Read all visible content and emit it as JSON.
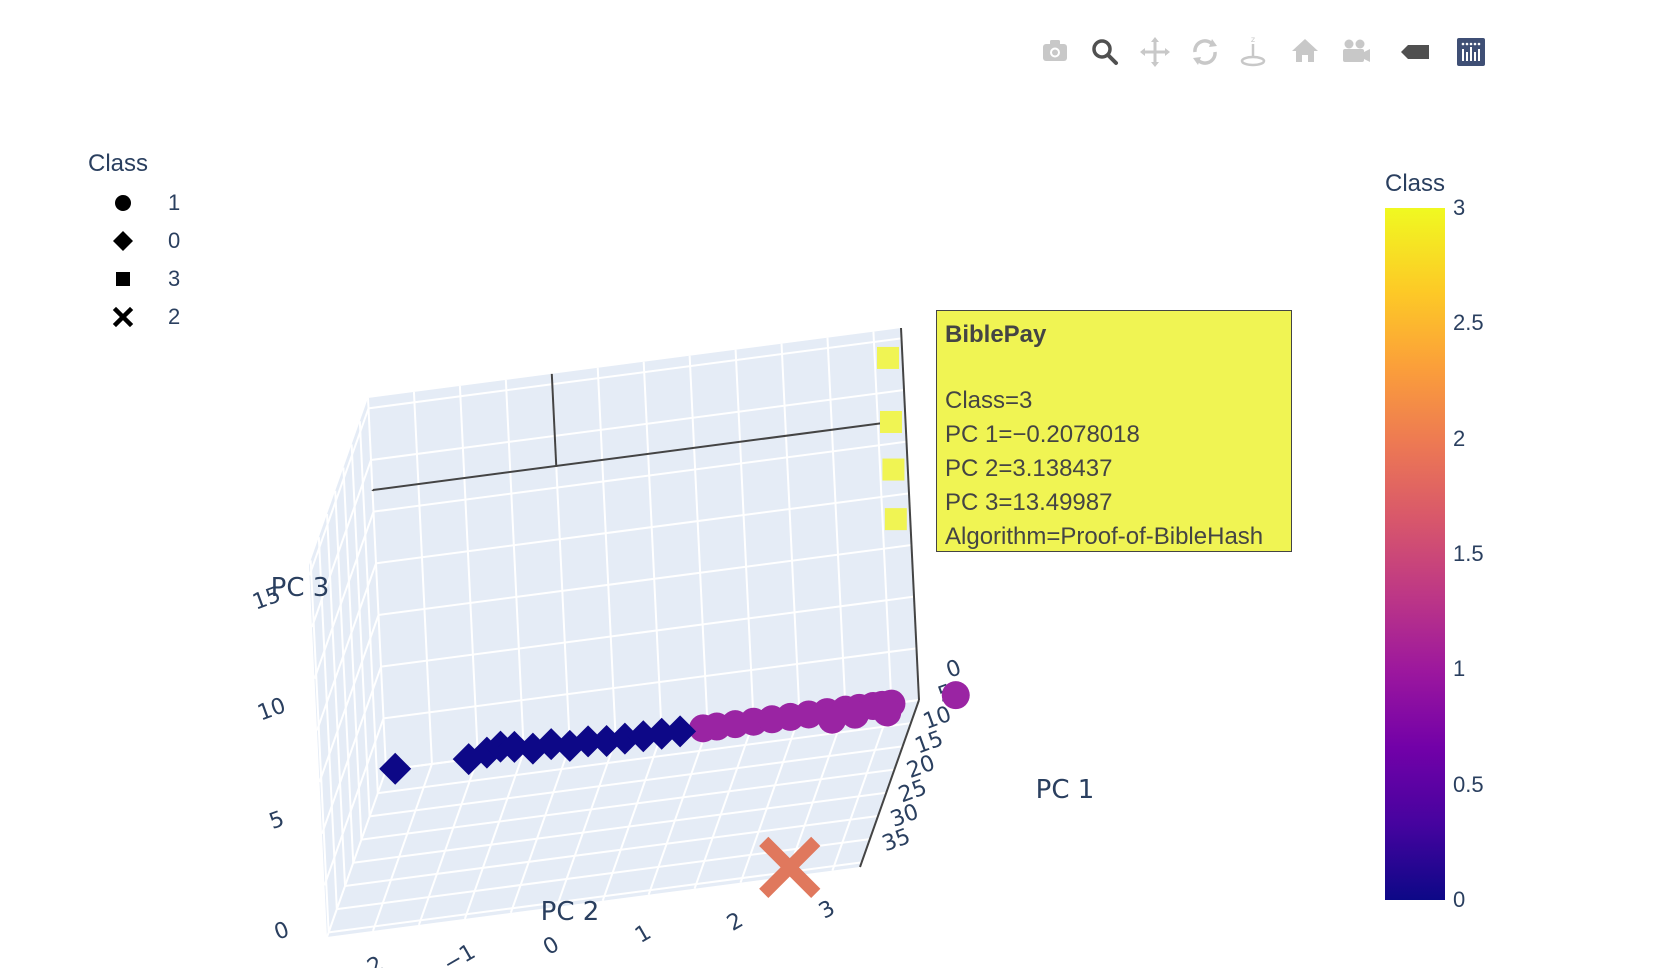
{
  "modebar": {
    "buttons": [
      {
        "name": "download-plot-button",
        "icon": "camera-icon"
      },
      {
        "name": "zoom-button",
        "icon": "zoom-icon"
      },
      {
        "name": "pan-button",
        "icon": "pan-icon"
      },
      {
        "name": "orbit-rotation-button",
        "icon": "orbit-icon"
      },
      {
        "name": "turntable-rotation-button",
        "icon": "turntable-icon"
      },
      {
        "name": "reset-camera-button",
        "icon": "home-icon"
      },
      {
        "name": "reset-last-view-button",
        "icon": "camera-video-icon"
      },
      {
        "name": "toggle-hover-button",
        "icon": "hover-tag-icon"
      },
      {
        "name": "plotly-logo-button",
        "icon": "plotly-logo-icon"
      }
    ]
  },
  "legend": {
    "title": "Class",
    "items": [
      {
        "label": "1",
        "symbol": "circle"
      },
      {
        "label": "0",
        "symbol": "diamond"
      },
      {
        "label": "3",
        "symbol": "square"
      },
      {
        "label": "2",
        "symbol": "x"
      }
    ]
  },
  "colorbar": {
    "title": "Class",
    "ticks": [
      "3",
      "2.5",
      "2",
      "1.5",
      "1",
      "0.5",
      "0"
    ],
    "colors": [
      "#0d0887",
      "#46039f",
      "#7201a8",
      "#9c179e",
      "#bd3786",
      "#d8576b",
      "#ed7953",
      "#fb9f3a",
      "#fdca26",
      "#f0f921"
    ]
  },
  "tooltip": {
    "title": "BiblePay",
    "lines": [
      "Class=3",
      "PC 1=−0.2078018",
      "PC 2=3.138437",
      "PC 3=13.49987",
      "Algorithm=Proof-of-BibleHash"
    ]
  },
  "chart_data": {
    "type": "scatter",
    "title": "",
    "axes": {
      "x": {
        "label": "PC 1",
        "range": [
          0,
          36
        ],
        "ticks": [
          "0",
          "5",
          "10",
          "15",
          "20",
          "25",
          "30",
          "35"
        ]
      },
      "y": {
        "label": "PC 2",
        "range": [
          -2.5,
          3.3
        ],
        "ticks": [
          "−2",
          "−1",
          "0",
          "1",
          "2",
          "3"
        ]
      },
      "z": {
        "label": "PC 3",
        "range": [
          0,
          18
        ],
        "ticks": [
          "0",
          "5",
          "10",
          "15"
        ]
      }
    },
    "grid": true,
    "colorscale": "plasma",
    "series": [
      {
        "name": "1",
        "symbol": "circle",
        "color": "#9a24a3",
        "points": [
          [
            0,
            0.95,
            0
          ],
          [
            0,
            1.1,
            0
          ],
          [
            0,
            1.3,
            0
          ],
          [
            0,
            1.5,
            0
          ],
          [
            0,
            1.7,
            0
          ],
          [
            0,
            1.9,
            0
          ],
          [
            0,
            2.1,
            0
          ],
          [
            0,
            2.3,
            0
          ],
          [
            0,
            2.5,
            0
          ],
          [
            0,
            2.65,
            0
          ],
          [
            0,
            2.8,
            0
          ],
          [
            0,
            2.9,
            0
          ],
          [
            0,
            3.0,
            0
          ],
          [
            0,
            2.35,
            -0.4
          ],
          [
            0,
            2.6,
            -0.3
          ],
          [
            0,
            2.95,
            -0.4
          ],
          [
            0,
            3.7,
            0
          ]
        ]
      },
      {
        "name": "0",
        "symbol": "diamond",
        "color": "#0d0887",
        "points": [
          [
            0,
            -2.4,
            0
          ],
          [
            0,
            -1.6,
            0
          ],
          [
            0,
            -1.4,
            0.2
          ],
          [
            0,
            -1.25,
            0.4
          ],
          [
            0,
            -1.1,
            0.3
          ],
          [
            0,
            -0.9,
            0.1
          ],
          [
            0,
            -0.7,
            0.2
          ],
          [
            0,
            -0.5,
            0
          ],
          [
            0,
            -0.3,
            0.1
          ],
          [
            0,
            -0.1,
            0
          ],
          [
            0,
            0.1,
            0
          ],
          [
            0,
            0.3,
            0
          ],
          [
            0,
            0.5,
            0
          ],
          [
            0,
            0.7,
            0
          ]
        ]
      },
      {
        "name": "3",
        "symbol": "square",
        "color": "#f0f453",
        "points": [
          [
            -0.2,
            3.14,
            16.6
          ],
          [
            -0.2078018,
            3.138437,
            13.49987
          ],
          [
            -0.2,
            3.14,
            11.2
          ],
          [
            -0.2,
            3.14,
            8.8
          ]
        ]
      },
      {
        "name": "2",
        "symbol": "x",
        "color": "#e0785d",
        "points": [
          [
            34,
            2.5,
            0
          ]
        ]
      }
    ]
  }
}
